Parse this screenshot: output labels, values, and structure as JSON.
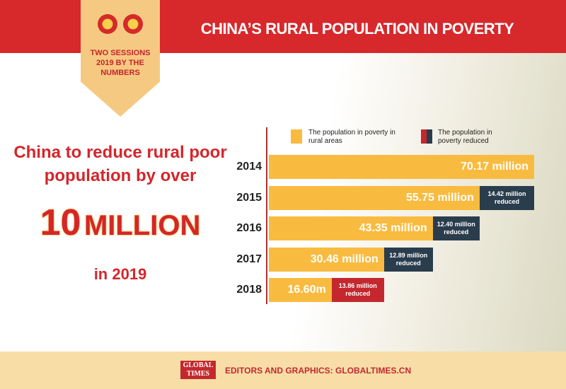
{
  "header": {
    "title": "CHINA’S RURAL POPULATION IN POVERTY",
    "badge": [
      "TWO SESSIONS",
      "2019 BY THE",
      "NUMBERS"
    ]
  },
  "headline": {
    "lines": [
      "China to reduce rural poor",
      "population by over"
    ],
    "number": "10",
    "unit": "MILLION",
    "year": "in 2019"
  },
  "chart_data": {
    "type": "bar",
    "orientation": "horizontal",
    "stacked": true,
    "categories": [
      "2014",
      "2015",
      "2016",
      "2017",
      "2018"
    ],
    "series": [
      {
        "name": "The population in poverty in rural areas",
        "color": "#f9bb3f",
        "values": [
          70.17,
          55.75,
          43.35,
          30.46,
          16.6
        ],
        "value_labels": [
          "70.17 million",
          "55.75 million",
          "43.35 million",
          "30.46 million",
          "16.60m"
        ]
      },
      {
        "name": "The population in poverty reduced",
        "color": "#2a3d4d",
        "colors": [
          null,
          "#2a3d4d",
          "#2a3d4d",
          "#2a3d4d",
          "#c4282e"
        ],
        "values": [
          null,
          14.42,
          12.4,
          12.89,
          13.86
        ],
        "value_labels": [
          null,
          "14.42 million reduced",
          "12.40 million reduced",
          "12.89 million reduced",
          "13.86 million reduced"
        ]
      }
    ]
  },
  "footer": {
    "logo": [
      "GLOBAL",
      "TIMES"
    ],
    "credit": "EDITORS AND GRAPHICS: GLOBALTIMES.CN"
  }
}
